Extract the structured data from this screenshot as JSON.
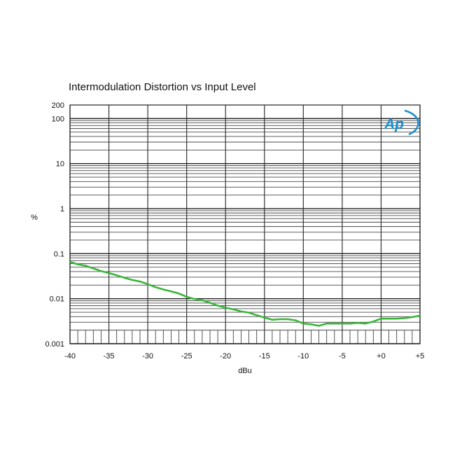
{
  "chart_data": {
    "type": "line",
    "title": "Intermodulation Distortion vs Input Level",
    "xlabel": "dBu",
    "ylabel": "%",
    "xlim": [
      -40,
      5
    ],
    "ylim": [
      0.001,
      200
    ],
    "y_scale": "log",
    "grid": true,
    "x_ticks": [
      "-40",
      "-35",
      "-30",
      "-25",
      "-20",
      "-15",
      "-10",
      "-5",
      "+0",
      "+5"
    ],
    "y_ticks": [
      "200",
      "100",
      "10",
      "1",
      "0.1",
      "0.01",
      "0.001"
    ],
    "y_tick_values": [
      200,
      100,
      10,
      1,
      0.1,
      0.01,
      0.001
    ],
    "logo_text": "Ap",
    "series": [
      {
        "color": "#3ab53a",
        "x": [
          -40,
          -39,
          -38,
          -37,
          -36,
          -35,
          -34,
          -33,
          -32,
          -31,
          -30,
          -29,
          -28,
          -27,
          -26,
          -25,
          -24,
          -23,
          -22,
          -21,
          -20,
          -19,
          -18,
          -17,
          -16,
          -15,
          -14,
          -13,
          -12,
          -11,
          -10,
          -9,
          -8,
          -7,
          -6,
          -5,
          -4,
          -3,
          -2,
          -1,
          0,
          1,
          2,
          3,
          4,
          5
        ],
        "y": [
          0.066,
          0.058,
          0.054,
          0.047,
          0.041,
          0.037,
          0.033,
          0.029,
          0.026,
          0.024,
          0.021,
          0.018,
          0.016,
          0.0145,
          0.013,
          0.011,
          0.0098,
          0.0092,
          0.0081,
          0.007,
          0.0063,
          0.0058,
          0.0052,
          0.0049,
          0.0043,
          0.0038,
          0.0034,
          0.0035,
          0.0035,
          0.0033,
          0.0028,
          0.0027,
          0.0025,
          0.0028,
          0.0028,
          0.0028,
          0.0028,
          0.0029,
          0.0028,
          0.0031,
          0.0036,
          0.0036,
          0.0036,
          0.0037,
          0.0039,
          0.0042
        ]
      }
    ]
  }
}
